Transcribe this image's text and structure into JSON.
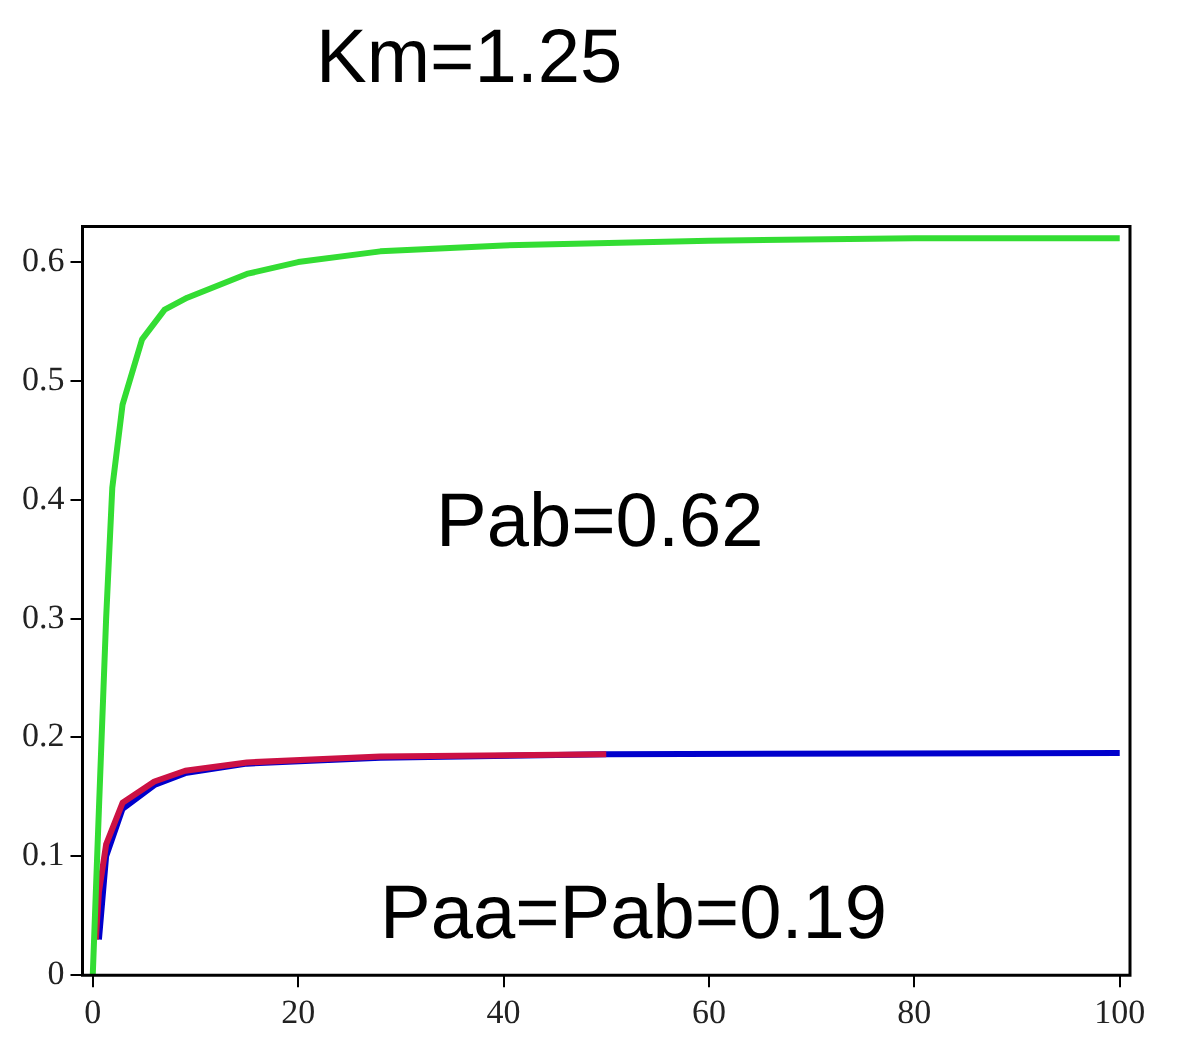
{
  "chart_data": {
    "type": "line",
    "title": "Km=1.25",
    "annotations": [
      "Pab=0.62",
      "Paa=Pab=0.19"
    ],
    "xlim": [
      -1,
      101
    ],
    "xticks": [
      0,
      20,
      40,
      60,
      80,
      100
    ],
    "ylim": [
      0,
      0.63
    ],
    "yticks": [
      0,
      0.1,
      0.2,
      0.3,
      0.4,
      0.5,
      0.6
    ],
    "grid": false,
    "legend": false,
    "marker": "none",
    "line_style": "solid",
    "series": [
      {
        "color": "#33dd33",
        "x": [
          0,
          0.6,
          1.3,
          1.9,
          2.9,
          4.8,
          7,
          9.2,
          15,
          20,
          28,
          40,
          60,
          80,
          100
        ],
        "values": [
          0,
          0.14,
          0.3,
          0.41,
          0.48,
          0.535,
          0.56,
          0.57,
          0.59,
          0.6,
          0.609,
          0.614,
          0.618,
          0.62,
          0.62
        ]
      },
      {
        "color": "#cc1144",
        "x": [
          0.3,
          0.6,
          1.3,
          2.9,
          6,
          9,
          15,
          28,
          50
        ],
        "values": [
          0.03,
          0.07,
          0.11,
          0.145,
          0.163,
          0.172,
          0.179,
          0.184,
          0.186
        ]
      },
      {
        "color": "#0000cc",
        "x": [
          0.6,
          0.8,
          1.3,
          2.9,
          6,
          9,
          15,
          28,
          50,
          100
        ],
        "values": [
          0.03,
          0.05,
          0.1,
          0.14,
          0.16,
          0.17,
          0.178,
          0.183,
          0.186,
          0.187
        ]
      }
    ]
  }
}
